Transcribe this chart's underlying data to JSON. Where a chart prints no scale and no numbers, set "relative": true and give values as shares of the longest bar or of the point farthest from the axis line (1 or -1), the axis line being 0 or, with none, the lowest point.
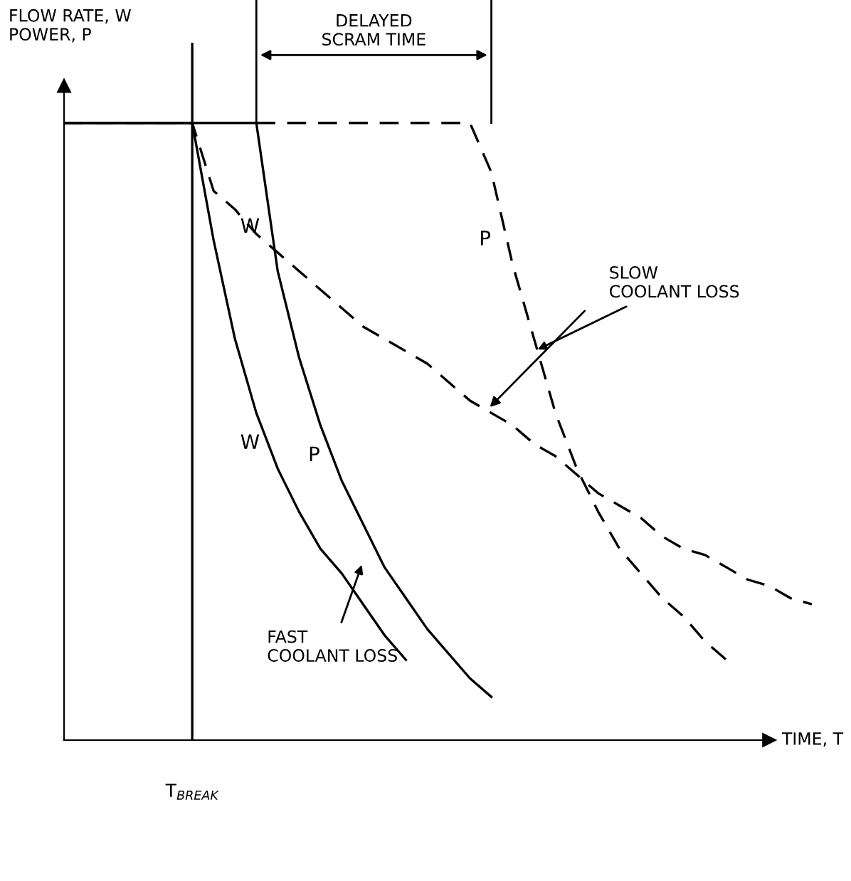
{
  "chart_data": {
    "type": "line",
    "relative": true,
    "xlabel": "TIME, T",
    "ylabel": "FLOW RATE, W\nPOWER, P",
    "categories": [
      null,
      null,
      null,
      null,
      null,
      null,
      null,
      null,
      null,
      null,
      null,
      null,
      null,
      null,
      null,
      null,
      null,
      null,
      null,
      null,
      null,
      null,
      null,
      null,
      null,
      null,
      null,
      null,
      null,
      null,
      null,
      null,
      null,
      null,
      null,
      null,
      null
    ],
    "series": [
      {
        "name": "W",
        "color": "#000000",
        "line_style": "solid",
        "values": [
          1,
          1,
          1,
          1,
          1,
          1,
          1,
          0.81,
          0.65,
          0.53,
          0.44,
          0.37,
          0.31,
          0.27,
          0.22,
          0.17,
          0.13,
          null,
          null,
          null,
          null,
          null,
          null,
          null,
          null,
          null,
          null,
          null,
          null,
          null,
          null,
          null,
          null,
          null,
          null,
          null,
          null
        ]
      },
      {
        "name": "P",
        "color": "#000000",
        "line_style": "solid",
        "values": [
          1,
          1,
          1,
          1,
          1,
          1,
          1,
          1,
          1,
          1,
          0.76,
          0.62,
          0.51,
          0.42,
          0.35,
          0.28,
          0.23,
          0.18,
          0.14,
          0.1,
          0.07,
          null,
          null,
          null,
          null,
          null,
          null,
          null,
          null,
          null,
          null,
          null,
          null,
          null,
          null,
          null,
          null
        ]
      },
      {
        "name": "W",
        "color": "#000000",
        "line_style": "dashed",
        "values": [
          1,
          1,
          1,
          1,
          1,
          1,
          1,
          0.89,
          0.86,
          0.82,
          0.79,
          0.76,
          0.73,
          0.7,
          0.67,
          0.65,
          0.63,
          0.61,
          0.58,
          0.55,
          0.53,
          0.51,
          0.48,
          0.46,
          0.43,
          0.4,
          0.38,
          0.36,
          0.33,
          0.31,
          0.3,
          0.28,
          0.26,
          0.25,
          0.23,
          0.22,
          null
        ]
      },
      {
        "name": "P",
        "color": "#000000",
        "line_style": "dashed",
        "values": [
          null,
          null,
          null,
          null,
          null,
          null,
          null,
          null,
          null,
          1,
          1,
          1,
          1,
          1,
          1,
          1,
          1,
          1,
          1,
          1,
          0.92,
          0.77,
          0.65,
          0.53,
          0.44,
          0.37,
          0.31,
          0.27,
          0.23,
          0.2,
          0.16,
          0.13,
          null,
          null,
          null,
          null,
          null
        ]
      }
    ],
    "annotations": [
      "DELAYED\nSCRAM TIME",
      "SLOW\nCOOLANT LOSS",
      "FAST\nCOOLANT LOSS",
      "T$_{BREAK}$"
    ],
    "legend": false
  }
}
